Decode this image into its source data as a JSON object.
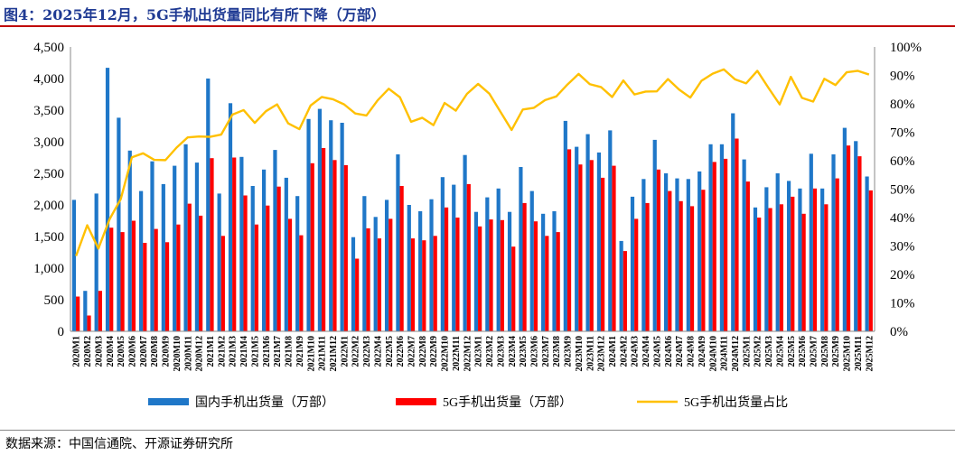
{
  "title": "图4：2025年12月，5G手机出货量同比有所下降（万部）",
  "source": "数据来源：中国信通院、开源证券研究所",
  "colors": {
    "domestic": "#1f77c8",
    "fiveg": "#ff0000",
    "share": "#ffc000",
    "title": "#1f3a93"
  },
  "chart_data": {
    "type": "bar",
    "title": "",
    "xlabel": "",
    "ylabel": "",
    "ylim": [
      0,
      4500
    ],
    "y_ticks": [
      0,
      500,
      1000,
      1500,
      2000,
      2500,
      3000,
      3500,
      4000,
      4500
    ],
    "y_tick_labels": [
      "0",
      "500",
      "1,000",
      "1,500",
      "2,000",
      "2,500",
      "3,000",
      "3,500",
      "4,000",
      "4,500"
    ],
    "y2lim": [
      0,
      100
    ],
    "y2_ticks": [
      0,
      10,
      20,
      30,
      40,
      50,
      60,
      70,
      80,
      90,
      100
    ],
    "y2_tick_labels": [
      "0%",
      "10%",
      "20%",
      "30%",
      "40%",
      "50%",
      "60%",
      "70%",
      "80%",
      "90%",
      "100%"
    ],
    "grid": false,
    "legend_position": "bottom",
    "categories": [
      "2020M1",
      "2020M2",
      "2020M3",
      "2020M4",
      "2020M5",
      "2020M6",
      "2020M7",
      "2020M8",
      "2020M9",
      "2020M10",
      "2020M11",
      "2020M12",
      "2021M1",
      "2021M2",
      "2021M3",
      "2021M4",
      "2021M5",
      "2021M6",
      "2021M7",
      "2021M8",
      "2021M9",
      "2021M10",
      "2021M11",
      "2021M12",
      "2022M1",
      "2022M2",
      "2022M3",
      "2022M4",
      "2022M5",
      "2022M6",
      "2022M7",
      "2022M8",
      "2022M9",
      "2022M10",
      "2022M11",
      "2022M12",
      "2023M1",
      "2023M2",
      "2023M3",
      "2023M4",
      "2023M5",
      "2023M6",
      "2023M7",
      "2023M8",
      "2023M9",
      "2023M10",
      "2023M11",
      "2023M12",
      "2024M1",
      "2024M2",
      "2024M3",
      "2024M4",
      "2024M5",
      "2024M6",
      "2024M7",
      "2024M8",
      "2024M9",
      "2024M10",
      "2024M11",
      "2024M12",
      "2025M1",
      "2025M2",
      "2025M3",
      "2025M4",
      "2025M5",
      "2025M6",
      "2025M7",
      "2025M8",
      "2025M9",
      "2025M10",
      "2025M11",
      "2025M12"
    ],
    "series": [
      {
        "name": "国内手机出货量（万部）",
        "type": "bar",
        "axis": "left",
        "values": [
          2080,
          640,
          2180,
          4170,
          3380,
          2860,
          2220,
          2690,
          2330,
          2620,
          2960,
          2670,
          4000,
          2180,
          3610,
          2760,
          2300,
          2560,
          2870,
          2430,
          2140,
          3360,
          3520,
          3340,
          3300,
          1490,
          2140,
          1810,
          2080,
          2800,
          2000,
          1900,
          2090,
          2440,
          2320,
          2790,
          1890,
          2120,
          2260,
          1890,
          2600,
          2220,
          1860,
          1900,
          3330,
          2920,
          3120,
          2830,
          3180,
          1430,
          2130,
          2410,
          3030,
          2500,
          2420,
          2410,
          2530,
          2960,
          2960,
          3450,
          2720,
          1960,
          2280,
          2500,
          2380,
          2260,
          2810,
          2260,
          2800,
          3220,
          3010,
          2450
        ]
      },
      {
        "name": "5G手机出货量（万部）",
        "type": "bar",
        "axis": "left",
        "values": [
          550,
          250,
          640,
          1640,
          1570,
          1750,
          1400,
          1620,
          1410,
          1690,
          2020,
          1830,
          2740,
          1510,
          2750,
          2150,
          1690,
          1990,
          2290,
          1780,
          1520,
          2660,
          2900,
          2710,
          2630,
          1150,
          1630,
          1470,
          1780,
          2300,
          1470,
          1440,
          1510,
          1960,
          1800,
          2330,
          1660,
          1770,
          1760,
          1340,
          2030,
          1740,
          1510,
          1570,
          2880,
          2640,
          2710,
          2430,
          2620,
          1270,
          1780,
          2030,
          2560,
          2220,
          2060,
          1980,
          2240,
          2680,
          2730,
          3050,
          2370,
          1800,
          1950,
          2010,
          2130,
          1860,
          2260,
          2010,
          2420,
          2940,
          2770,
          2230
        ]
      },
      {
        "name": "5G手机出货量占比",
        "type": "line",
        "axis": "right",
        "values": [
          26.5,
          37.3,
          29.1,
          39.4,
          46.5,
          61.2,
          62.6,
          60.3,
          60.2,
          64.6,
          68.2,
          68.5,
          68.4,
          69.2,
          76.2,
          77.8,
          73.3,
          77.4,
          79.8,
          73.1,
          71.1,
          79.4,
          82.4,
          81.6,
          79.8,
          76.6,
          75.9,
          81.2,
          85.3,
          82.3,
          73.7,
          75.1,
          72.5,
          80.3,
          77.6,
          83.5,
          87.0,
          83.6,
          77.2,
          70.8,
          78.0,
          78.6,
          81.3,
          82.6,
          86.8,
          90.5,
          86.9,
          85.9,
          82.4,
          88.2,
          83.3,
          84.3,
          84.4,
          88.7,
          85.0,
          82.2,
          88.1,
          90.6,
          92.1,
          88.6,
          87.2,
          91.6,
          85.6,
          79.8,
          89.5,
          82.1,
          80.8,
          88.8,
          86.6,
          91.1,
          91.6,
          90.3
        ]
      }
    ]
  }
}
